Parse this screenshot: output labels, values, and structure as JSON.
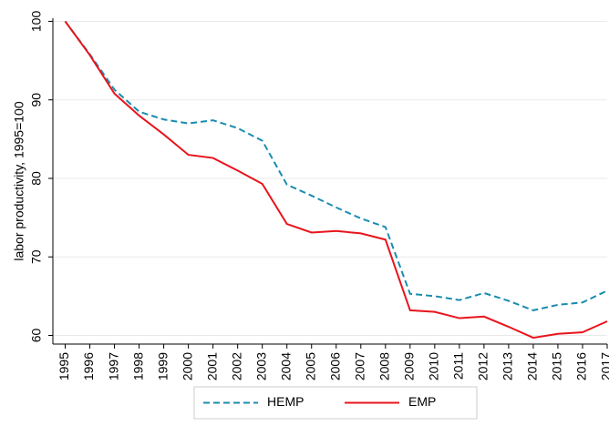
{
  "chart_data": {
    "type": "line",
    "ylabel": "labor productivity, 1995=100",
    "x": [
      1995,
      1996,
      1997,
      1998,
      1999,
      2000,
      2001,
      2002,
      2003,
      2004,
      2005,
      2006,
      2007,
      2008,
      2009,
      2010,
      2011,
      2012,
      2013,
      2014,
      2015,
      2016,
      2017
    ],
    "series": [
      {
        "name": "HEMP",
        "color": "#1a8caf",
        "dash": true,
        "values": [
          100,
          95.8,
          91.3,
          88.5,
          87.5,
          87.0,
          87.4,
          86.4,
          84.8,
          79.2,
          77.8,
          76.3,
          74.9,
          73.8,
          65.3,
          65.0,
          64.5,
          65.4,
          64.4,
          63.2,
          63.9,
          64.2,
          65.7
        ]
      },
      {
        "name": "EMP",
        "color": "#e8141c",
        "dash": false,
        "values": [
          100,
          95.7,
          90.8,
          88.0,
          85.6,
          83.0,
          82.6,
          81.0,
          79.3,
          74.2,
          73.1,
          73.3,
          73.0,
          72.2,
          63.2,
          63.0,
          62.2,
          62.4,
          61.1,
          59.7,
          60.2,
          60.4,
          61.8
        ]
      }
    ],
    "xlim": [
      1994.5,
      2017
    ],
    "xticks": [
      1995,
      1996,
      1997,
      1998,
      1999,
      2000,
      2001,
      2002,
      2003,
      2004,
      2005,
      2006,
      2007,
      2008,
      2009,
      2010,
      2011,
      2012,
      2013,
      2014,
      2015,
      2016,
      2017
    ],
    "ylim": [
      58.9,
      100.4
    ],
    "yticks": [
      60,
      70,
      80,
      90,
      100
    ],
    "grid": true,
    "legend": "bottom"
  }
}
